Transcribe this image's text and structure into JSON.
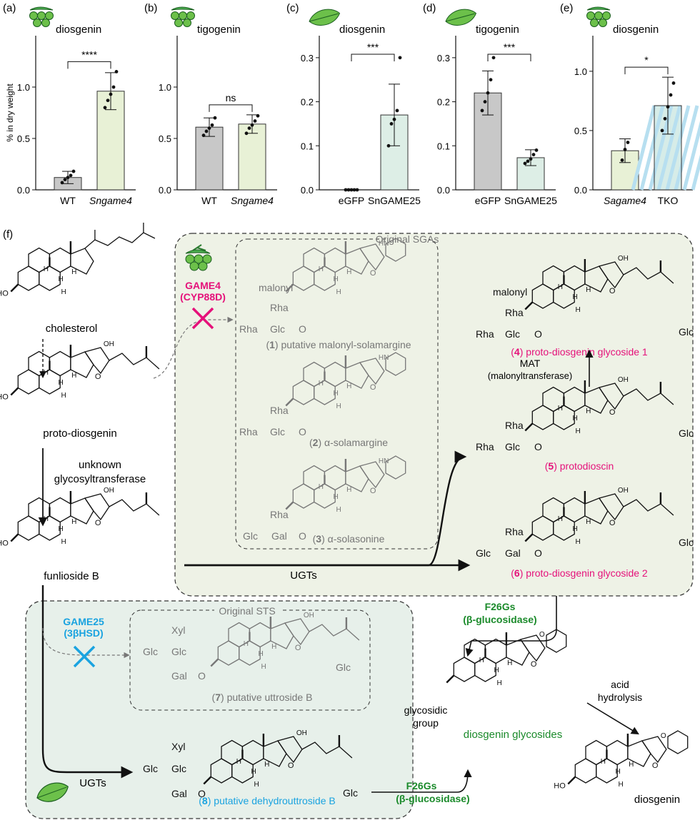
{
  "colors": {
    "wt_bar": "#c8c8c8",
    "mutant_bar": "#e8f1d6",
    "sn_bar": "#ddeee6",
    "tko_bar": "#d6ece8",
    "magenta": "#e5117a",
    "blue": "#1aa3e0",
    "green": "#1a8a2a",
    "gray_text": "#777777",
    "panel_green": "#eef2e6",
    "panel_teal": "#e7f0ea"
  },
  "chart_data": [
    {
      "panel": "(a)",
      "type": "bar",
      "title": "diosgenin",
      "icon": "berries-icon",
      "ylabel": "% in dry weight",
      "ylim": [
        0,
        1.5
      ],
      "ticks": [
        {
          "v": 0,
          "t": "0.0"
        },
        {
          "v": 0.5,
          "t": "0.5"
        },
        {
          "v": 1.0,
          "t": "1.0"
        }
      ],
      "categories": [
        {
          "label": "WT",
          "italic": false
        },
        {
          "label": "Sngame4",
          "italic": true
        }
      ],
      "values": [
        0.12,
        0.96
      ],
      "errors": [
        0.06,
        0.18
      ],
      "points": [
        [
          0.07,
          0.1,
          0.12,
          0.14,
          0.18
        ],
        [
          0.8,
          0.87,
          0.93,
          1.0,
          1.15
        ]
      ],
      "fills": [
        "#c8c8c8",
        "#e8f1d6"
      ],
      "sig": "****"
    },
    {
      "panel": "(b)",
      "type": "bar",
      "title": "tigogenin",
      "icon": "berries-icon",
      "ylabel": "",
      "ylim": [
        0,
        1.5
      ],
      "ticks": [
        {
          "v": 0,
          "t": "0.0"
        },
        {
          "v": 0.5,
          "t": "0.5"
        },
        {
          "v": 1.0,
          "t": "1.0"
        }
      ],
      "categories": [
        {
          "label": "WT",
          "italic": false
        },
        {
          "label": "Sngame4",
          "italic": true
        }
      ],
      "values": [
        0.61,
        0.64
      ],
      "errors": [
        0.09,
        0.09
      ],
      "points": [
        [
          0.53,
          0.57,
          0.6,
          0.63,
          0.7
        ],
        [
          0.55,
          0.6,
          0.63,
          0.67,
          0.72
        ]
      ],
      "fills": [
        "#c8c8c8",
        "#e8f1d6"
      ],
      "sig": "ns"
    },
    {
      "panel": "(c)",
      "type": "bar",
      "title": "diosgenin",
      "icon": "leaf-icon",
      "ylabel": "",
      "ylim": [
        0,
        0.35
      ],
      "ticks": [
        {
          "v": 0,
          "t": "0.0"
        },
        {
          "v": 0.1,
          "t": "0.1"
        },
        {
          "v": 0.2,
          "t": "0.2"
        },
        {
          "v": 0.3,
          "t": "0.3"
        }
      ],
      "categories": [
        {
          "label": "eGFP",
          "italic": false
        },
        {
          "label": "SnGAME25",
          "italic": false
        }
      ],
      "values": [
        0.0,
        0.17
      ],
      "errors": [
        0.0,
        0.07
      ],
      "points": [
        [
          0,
          0,
          0,
          0,
          0
        ],
        [
          0.1,
          0.15,
          0.16,
          0.18,
          0.3
        ]
      ],
      "fills": [
        "#c8c8c8",
        "#ddeee6"
      ],
      "sig": "***"
    },
    {
      "panel": "(d)",
      "type": "bar",
      "title": "tigogenin",
      "icon": "leaf-icon",
      "ylabel": "",
      "ylim": [
        0,
        0.35
      ],
      "ticks": [
        {
          "v": 0,
          "t": "0.0"
        },
        {
          "v": 0.1,
          "t": "0.1"
        },
        {
          "v": 0.2,
          "t": "0.2"
        },
        {
          "v": 0.3,
          "t": "0.3"
        }
      ],
      "categories": [
        {
          "label": "eGFP",
          "italic": false
        },
        {
          "label": "SnGAME25",
          "italic": false
        }
      ],
      "values": [
        0.22,
        0.073
      ],
      "errors": [
        0.05,
        0.018
      ],
      "points": [
        [
          0.18,
          0.2,
          0.22,
          0.25,
          0.3
        ],
        [
          0.06,
          0.065,
          0.07,
          0.08,
          0.09
        ]
      ],
      "fills": [
        "#c8c8c8",
        "#ddeee6"
      ],
      "sig": "***"
    },
    {
      "panel": "(e)",
      "type": "bar",
      "title": "diosgenin",
      "icon": "berries-icon",
      "ylabel": "",
      "ylim": [
        0,
        1.3
      ],
      "ticks": [
        {
          "v": 0,
          "t": "0.0"
        },
        {
          "v": 0.5,
          "t": "0.5"
        },
        {
          "v": 1.0,
          "t": "1.0"
        }
      ],
      "categories": [
        {
          "label": "Sagame4",
          "italic": true
        },
        {
          "label": "TKO",
          "italic": false
        }
      ],
      "values": [
        0.33,
        0.71
      ],
      "errors": [
        0.1,
        0.24
      ],
      "points": [
        [
          0.25,
          0.34,
          0.4
        ],
        [
          0.5,
          0.6,
          0.7,
          0.8,
          0.9
        ]
      ],
      "fills": [
        "#e8f1d6",
        "#d6ece8"
      ],
      "sig": "*"
    }
  ],
  "pathway": {
    "panel_label": "(f)",
    "cholesterol": "cholesterol",
    "proto_diosgenin": "proto-diosgenin",
    "unknown_gt": "unknown",
    "unknown_gt2": "glycosyltransferase",
    "funlioside_b": "funlioside B",
    "game4": "GAME4",
    "game4_sub": "(CYP88D)",
    "original_sgas": "Original SGAs",
    "c1_name": "putative malonyl-solamargine",
    "c2_name": "α-solamargine",
    "c3_name": "α-solasonine",
    "c4_name": "proto-diosgenin glycoside 1",
    "c5_name": "protodioscin",
    "c6_name": "proto-diosgenin glycoside 2",
    "num1": "1",
    "num2": "2",
    "num3": "3",
    "num4": "4",
    "num5": "5",
    "num6": "6",
    "num7": "7",
    "num8": "8",
    "mat": "MAT",
    "mat_full": "(malonyltransferase)",
    "ugts": "UGTs",
    "ugts2": "UGTs",
    "game25": "GAME25",
    "game25_sub": "(3βHSD)",
    "original_sts": "Original STS",
    "c7_name": "putative uttroside B",
    "c8_name": "putative dehydrouttroside B",
    "f26gs": "F26Gs",
    "f26gs_sub": "(β-glucosidase)",
    "f26gs2": "F26Gs",
    "f26gs2_sub": "(β-glucosidase)",
    "glycosidic": "glycosidic",
    "group": "group",
    "diosgenin_glycosides": "diosgenin glycosides",
    "acid": "acid",
    "hydrolysis": "hydrolysis",
    "diosgenin": "diosgenin",
    "sugar": {
      "malonyl": "malonyl",
      "rha": "Rha",
      "glc": "Glc",
      "gal": "Gal",
      "xyl": "Xyl",
      "o": "O",
      "ho": "HO",
      "oh": "OH",
      "h": "H",
      "hn": "HN"
    }
  }
}
